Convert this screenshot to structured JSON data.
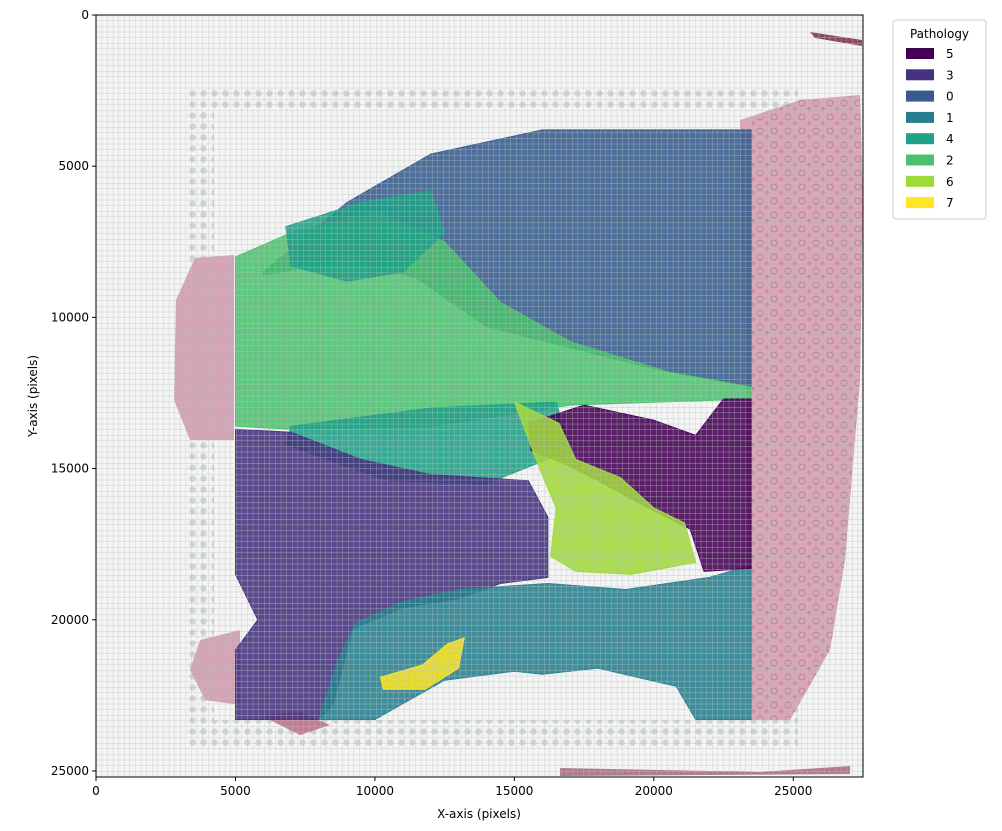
{
  "chart_data": {
    "type": "heatmap",
    "xlabel": "X-axis (pixels)",
    "ylabel": "Y-axis (pixels)",
    "xlim": [
      0,
      27500
    ],
    "ylim": [
      25200,
      0
    ],
    "x_ticks": [
      0,
      5000,
      10000,
      15000,
      20000,
      25000
    ],
    "y_ticks": [
      0,
      5000,
      10000,
      15000,
      20000,
      25000
    ],
    "grid": true,
    "background": "H&E tissue section image with Visium spot grid",
    "legend": {
      "title": "Pathology",
      "placement": "outside-top-right",
      "entries": [
        {
          "label": "5",
          "color": "#440154"
        },
        {
          "label": "3",
          "color": "#46327e"
        },
        {
          "label": "0",
          "color": "#365c8d"
        },
        {
          "label": "1",
          "color": "#277f8e"
        },
        {
          "label": "4",
          "color": "#1fa187"
        },
        {
          "label": "2",
          "color": "#4ac16d"
        },
        {
          "label": "6",
          "color": "#a0da39"
        },
        {
          "label": "7",
          "color": "#fde725"
        }
      ]
    },
    "regions": [
      {
        "cluster": "0",
        "polygon": [
          [
            6000,
            8500
          ],
          [
            9000,
            6200
          ],
          [
            12000,
            4600
          ],
          [
            16000,
            3800
          ],
          [
            23500,
            3800
          ],
          [
            23500,
            12300
          ],
          [
            20000,
            11700
          ],
          [
            17000,
            11000
          ],
          [
            14000,
            10300
          ],
          [
            11500,
            8700
          ],
          [
            9000,
            8100
          ],
          [
            6000,
            8600
          ]
        ]
      },
      {
        "cluster": "2",
        "polygon": [
          [
            5000,
            8000
          ],
          [
            7000,
            7200
          ],
          [
            10000,
            6500
          ],
          [
            12500,
            7500
          ],
          [
            14500,
            9500
          ],
          [
            17000,
            10800
          ],
          [
            20500,
            11800
          ],
          [
            23500,
            12300
          ],
          [
            23500,
            12700
          ],
          [
            17000,
            12900
          ],
          [
            12000,
            13600
          ],
          [
            7000,
            13700
          ],
          [
            5000,
            13600
          ]
        ]
      },
      {
        "cluster": "4",
        "polygon": [
          [
            6800,
            7000
          ],
          [
            9500,
            6200
          ],
          [
            12000,
            5800
          ],
          [
            12500,
            7200
          ],
          [
            11000,
            8500
          ],
          [
            9000,
            8800
          ],
          [
            7000,
            8300
          ]
        ]
      },
      {
        "cluster": "4",
        "polygon": [
          [
            7000,
            13600
          ],
          [
            12000,
            13000
          ],
          [
            16500,
            12800
          ],
          [
            17000,
            14400
          ],
          [
            14000,
            15500
          ],
          [
            10500,
            15400
          ],
          [
            8000,
            14600
          ],
          [
            6800,
            14200
          ]
        ]
      },
      {
        "cluster": "3",
        "polygon": [
          [
            5000,
            13700
          ],
          [
            7000,
            13800
          ],
          [
            9500,
            14700
          ],
          [
            12000,
            15200
          ],
          [
            15500,
            15400
          ],
          [
            16200,
            16600
          ],
          [
            16200,
            18600
          ],
          [
            14500,
            18800
          ],
          [
            13000,
            19300
          ],
          [
            11000,
            19600
          ],
          [
            9200,
            20300
          ],
          [
            8500,
            22800
          ],
          [
            8000,
            23300
          ],
          [
            5000,
            23300
          ],
          [
            5000,
            21000
          ],
          [
            5800,
            20000
          ],
          [
            5000,
            18500
          ]
        ]
      },
      {
        "cluster": "1",
        "polygon": [
          [
            13000,
            19000
          ],
          [
            16200,
            18800
          ],
          [
            19000,
            19000
          ],
          [
            22000,
            18600
          ],
          [
            23500,
            18200
          ],
          [
            23500,
            23300
          ],
          [
            21500,
            23300
          ],
          [
            20800,
            22200
          ],
          [
            18000,
            21600
          ],
          [
            16000,
            21800
          ],
          [
            15000,
            21700
          ],
          [
            12500,
            22000
          ],
          [
            10000,
            23300
          ],
          [
            8000,
            23300
          ],
          [
            8600,
            21500
          ],
          [
            9300,
            20100
          ],
          [
            11000,
            19400
          ]
        ]
      },
      {
        "cluster": "5",
        "polygon": [
          [
            15500,
            13500
          ],
          [
            17500,
            12900
          ],
          [
            20000,
            13400
          ],
          [
            21500,
            13900
          ],
          [
            22500,
            12700
          ],
          [
            23500,
            12700
          ],
          [
            23500,
            18300
          ],
          [
            21800,
            18400
          ],
          [
            21300,
            17000
          ],
          [
            19800,
            16300
          ],
          [
            18000,
            15400
          ],
          [
            16700,
            14800
          ],
          [
            15600,
            14400
          ]
        ]
      },
      {
        "cluster": "6",
        "polygon": [
          [
            15000,
            12800
          ],
          [
            16600,
            13500
          ],
          [
            17200,
            14700
          ],
          [
            18800,
            15300
          ],
          [
            20000,
            16300
          ],
          [
            21100,
            16800
          ],
          [
            21500,
            18100
          ],
          [
            19200,
            18500
          ],
          [
            17200,
            18400
          ],
          [
            16300,
            17900
          ],
          [
            16500,
            16300
          ],
          [
            15900,
            15000
          ]
        ]
      },
      {
        "cluster": "7",
        "polygon": [
          [
            10200,
            21900
          ],
          [
            11700,
            21500
          ],
          [
            12600,
            20800
          ],
          [
            13200,
            20600
          ],
          [
            13000,
            21600
          ],
          [
            11800,
            22300
          ],
          [
            10300,
            22300
          ]
        ]
      }
    ]
  }
}
